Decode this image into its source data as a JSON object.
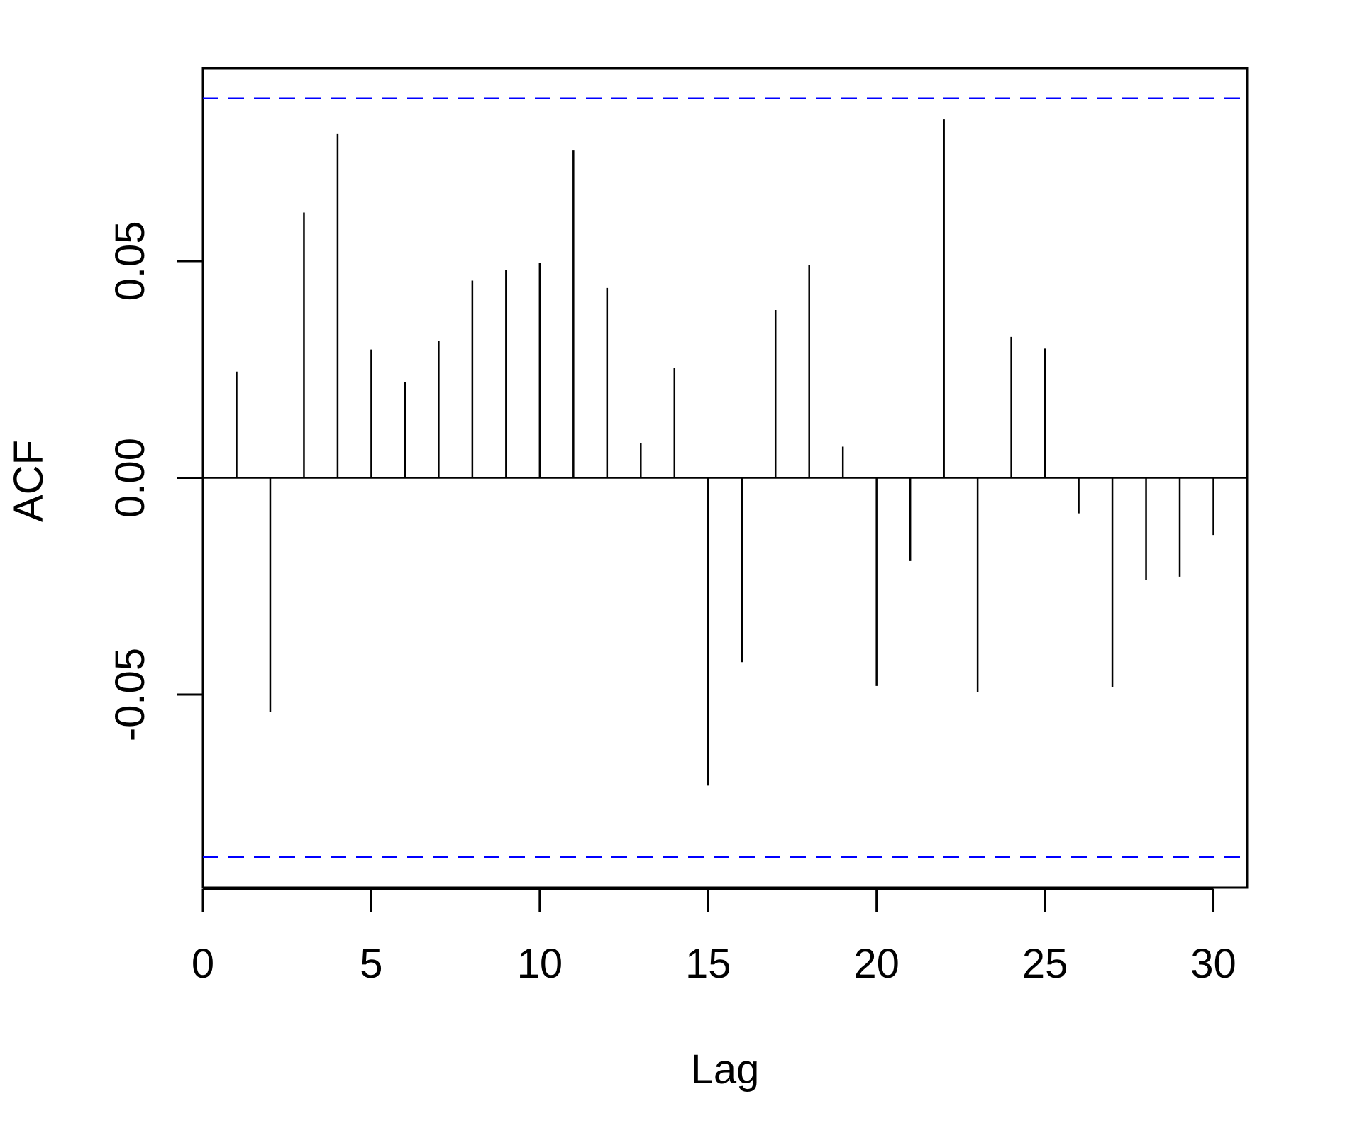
{
  "chart_data": {
    "type": "bar",
    "title": "",
    "xlabel": "Lag",
    "ylabel": "ACF",
    "x": [
      1,
      2,
      3,
      4,
      5,
      6,
      7,
      8,
      9,
      10,
      11,
      12,
      13,
      14,
      15,
      16,
      17,
      18,
      19,
      20,
      21,
      22,
      23,
      24,
      25,
      26,
      27,
      28,
      29,
      30
    ],
    "values": [
      0.0245,
      -0.054,
      0.0612,
      0.0793,
      0.0296,
      0.022,
      0.0316,
      0.0455,
      0.048,
      0.0496,
      0.0755,
      0.0438,
      0.008,
      0.0254,
      -0.071,
      -0.0425,
      0.0387,
      0.049,
      0.0072,
      -0.048,
      -0.0192,
      0.0827,
      -0.0495,
      0.0325,
      0.0298,
      -0.0082,
      -0.0482,
      -0.0235,
      -0.0228,
      -0.0132
    ],
    "xlim": [
      0,
      31
    ],
    "ylim": [
      -0.0945,
      0.0945
    ],
    "xticks": [
      "0",
      "5",
      "10",
      "15",
      "20",
      "25",
      "30"
    ],
    "yticks": [
      "-0.05",
      "0.00",
      "0.05"
    ],
    "confidence_bound": 0.0875,
    "grid": false,
    "colors": {
      "bars": "#000000",
      "bounds": "#0000ff",
      "zero": "#000000",
      "frame": "#000000"
    }
  }
}
